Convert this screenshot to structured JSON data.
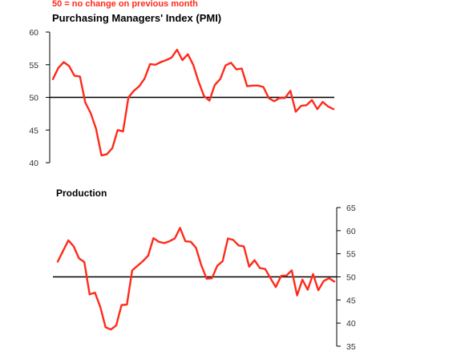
{
  "note": "50 =  no change on previous month",
  "chart_data": [
    {
      "type": "line",
      "title": "Purchasing Managers' Index (PMI)",
      "xlabel": "",
      "ylabel": "",
      "ylim": [
        40,
        60
      ],
      "yticks": [
        40,
        45,
        50,
        55,
        60
      ],
      "reference_line": 50,
      "y_axis_side": "left",
      "grid": false,
      "series": [
        {
          "values": [
            52.8,
            54.5,
            55.4,
            54.8,
            53.3,
            53.2,
            49.2,
            47.6,
            45.2,
            41.1,
            41.3,
            42.2,
            45.0,
            44.8,
            50.0,
            51.0,
            51.7,
            52.9,
            55.1,
            55.0,
            55.4,
            55.7,
            56.1,
            57.3,
            55.7,
            56.6,
            55.0,
            52.4,
            50.2,
            49.5,
            51.9,
            52.8,
            54.9,
            55.3,
            54.3,
            54.4,
            51.7,
            51.8,
            51.8,
            51.6,
            49.9,
            49.4,
            49.9,
            49.9,
            51.0,
            47.8,
            48.7,
            48.8,
            49.6,
            48.2,
            49.3,
            48.6,
            48.2
          ]
        }
      ]
    },
    {
      "type": "line",
      "title": "Production",
      "xlabel": "",
      "ylabel": "",
      "ylim": [
        35,
        65
      ],
      "yticks": [
        35,
        40,
        45,
        50,
        55,
        60,
        65
      ],
      "reference_line": 50,
      "y_axis_side": "right",
      "grid": false,
      "series": [
        {
          "values": [
            53.3,
            55.6,
            57.9,
            56.6,
            54.0,
            53.2,
            46.2,
            46.6,
            43.5,
            39.1,
            38.6,
            39.5,
            43.9,
            44.0,
            51.4,
            52.4,
            53.4,
            54.6,
            58.4,
            57.6,
            57.3,
            57.7,
            58.3,
            60.6,
            57.7,
            57.6,
            56.3,
            52.5,
            49.6,
            49.7,
            52.4,
            53.4,
            58.3,
            58.0,
            56.8,
            56.6,
            52.2,
            53.6,
            51.9,
            51.7,
            49.7,
            47.8,
            50.2,
            50.3,
            51.4,
            46.0,
            49.4,
            47.2,
            50.6,
            47.1,
            49.1,
            49.7,
            49.0
          ]
        }
      ]
    }
  ]
}
